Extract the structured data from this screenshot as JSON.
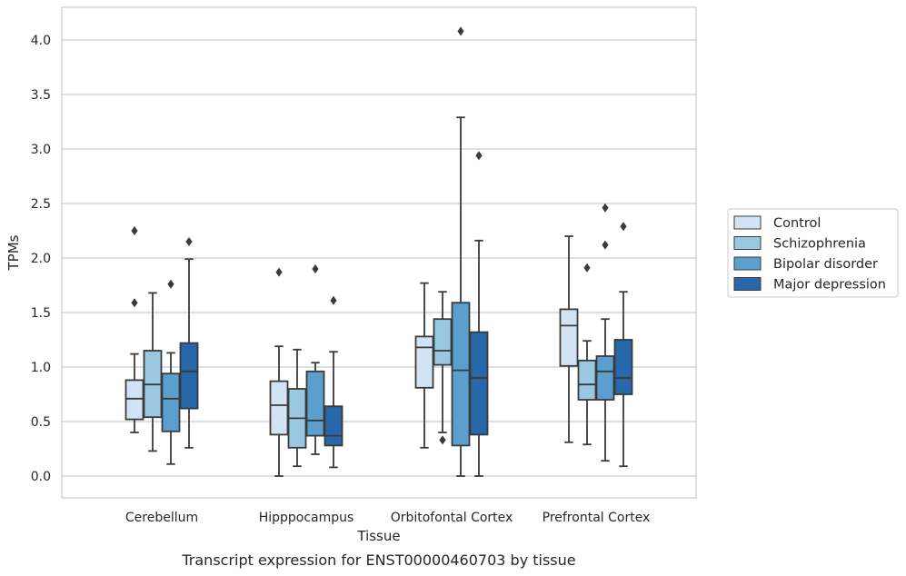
{
  "chart_data": {
    "type": "box",
    "title": "",
    "caption": "Transcript expression for ENST00000460703 by tissue",
    "xlabel": "Tissue",
    "ylabel": "TPMs",
    "ylim": [
      -0.2,
      4.3
    ],
    "yticks": [
      "0.0",
      "0.5",
      "1.0",
      "1.5",
      "2.0",
      "2.5",
      "3.0",
      "3.5",
      "4.0"
    ],
    "grid": true,
    "legend_position": "right",
    "categories": [
      "Cerebellum",
      "Hipppocampus",
      "Orbitofontal Cortex",
      "Prefrontal Cortex"
    ],
    "series": [
      {
        "name": "Control",
        "color": "#d2e3f3",
        "boxes": [
          {
            "whislo": 0.4,
            "q1": 0.52,
            "med": 0.71,
            "q3": 0.88,
            "whishi": 1.12,
            "fliers": [
              1.59,
              2.25
            ]
          },
          {
            "whislo": 0.0,
            "q1": 0.38,
            "med": 0.65,
            "q3": 0.87,
            "whishi": 1.19,
            "fliers": [
              1.87
            ]
          },
          {
            "whislo": 0.26,
            "q1": 0.81,
            "med": 1.18,
            "q3": 1.28,
            "whishi": 1.77,
            "fliers": []
          },
          {
            "whislo": 0.31,
            "q1": 1.01,
            "med": 1.38,
            "q3": 1.53,
            "whishi": 2.2,
            "fliers": []
          }
        ]
      },
      {
        "name": "Schizophrenia",
        "color": "#9ac8e0",
        "boxes": [
          {
            "whislo": 0.23,
            "q1": 0.54,
            "med": 0.84,
            "q3": 1.15,
            "whishi": 1.68,
            "fliers": []
          },
          {
            "whislo": 0.09,
            "q1": 0.26,
            "med": 0.53,
            "q3": 0.8,
            "whishi": 1.16,
            "fliers": []
          },
          {
            "whislo": 0.4,
            "q1": 1.02,
            "med": 1.15,
            "q3": 1.44,
            "whishi": 1.69,
            "fliers": [
              0.33
            ]
          },
          {
            "whislo": 0.29,
            "q1": 0.7,
            "med": 0.84,
            "q3": 1.06,
            "whishi": 1.24,
            "fliers": [
              1.91
            ]
          }
        ]
      },
      {
        "name": "Bipolar disorder",
        "color": "#5a9fcd",
        "boxes": [
          {
            "whislo": 0.11,
            "q1": 0.41,
            "med": 0.71,
            "q3": 0.94,
            "whishi": 1.13,
            "fliers": [
              1.76
            ]
          },
          {
            "whislo": 0.2,
            "q1": 0.37,
            "med": 0.51,
            "q3": 0.96,
            "whishi": 1.04,
            "fliers": [
              1.9
            ]
          },
          {
            "whislo": 0.0,
            "q1": 0.28,
            "med": 0.97,
            "q3": 1.59,
            "whishi": 3.29,
            "fliers": [
              4.08
            ]
          },
          {
            "whislo": 0.14,
            "q1": 0.7,
            "med": 0.96,
            "q3": 1.1,
            "whishi": 1.44,
            "fliers": [
              2.12,
              2.46
            ]
          }
        ]
      },
      {
        "name": "Major depression",
        "color": "#2767aa",
        "boxes": [
          {
            "whislo": 0.26,
            "q1": 0.62,
            "med": 0.96,
            "q3": 1.22,
            "whishi": 1.99,
            "fliers": [
              2.15
            ]
          },
          {
            "whislo": 0.08,
            "q1": 0.28,
            "med": 0.37,
            "q3": 0.64,
            "whishi": 1.14,
            "fliers": [
              1.61
            ]
          },
          {
            "whislo": 0.0,
            "q1": 0.38,
            "med": 0.9,
            "q3": 1.32,
            "whishi": 2.16,
            "fliers": [
              2.94
            ]
          },
          {
            "whislo": 0.09,
            "q1": 0.75,
            "med": 0.9,
            "q3": 1.25,
            "whishi": 1.69,
            "fliers": [
              2.29
            ]
          }
        ]
      }
    ]
  }
}
